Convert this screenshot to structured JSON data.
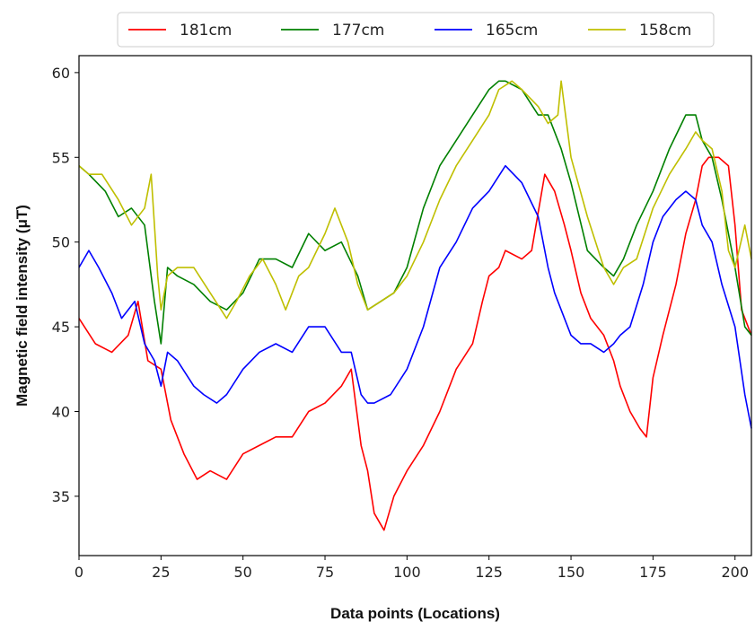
{
  "chart_data": {
    "type": "line",
    "title": "",
    "xlabel": "Data points (Locations)",
    "ylabel": "Magnetic field intensity (μT)",
    "xlim": [
      0,
      205
    ],
    "ylim": [
      31.5,
      61
    ],
    "xticks": [
      0,
      25,
      50,
      75,
      100,
      125,
      150,
      175,
      200
    ],
    "yticks": [
      35,
      40,
      45,
      50,
      55,
      60
    ],
    "grid": false,
    "legend_position": "top-center",
    "series": [
      {
        "name": "181cm",
        "color": "#ff0000",
        "x": [
          0,
          5,
          10,
          15,
          18,
          21,
          25,
          28,
          32,
          36,
          40,
          45,
          50,
          55,
          60,
          65,
          70,
          75,
          80,
          83,
          86,
          88,
          90,
          93,
          96,
          100,
          105,
          110,
          115,
          120,
          123,
          125,
          128,
          130,
          135,
          138,
          142,
          145,
          148,
          150,
          153,
          156,
          160,
          163,
          165,
          168,
          171,
          173,
          175,
          178,
          182,
          185,
          188,
          190,
          192,
          195,
          198,
          200,
          202,
          205
        ],
        "y": [
          45.5,
          44.0,
          43.5,
          44.5,
          46.5,
          43.0,
          42.5,
          39.5,
          37.5,
          36.0,
          36.5,
          36.0,
          37.5,
          38.0,
          38.5,
          38.5,
          40.0,
          40.5,
          41.5,
          42.5,
          38.0,
          36.5,
          34.0,
          33.0,
          35.0,
          36.5,
          38.0,
          40.0,
          42.5,
          44.0,
          46.5,
          48.0,
          48.5,
          49.5,
          49.0,
          49.5,
          54.0,
          53.0,
          51.0,
          49.5,
          47.0,
          45.5,
          44.5,
          43.0,
          41.5,
          40.0,
          39.0,
          38.5,
          42.0,
          44.5,
          47.5,
          50.5,
          52.5,
          54.5,
          55.0,
          55.0,
          54.5,
          51.0,
          46.0,
          44.5
        ]
      },
      {
        "name": "177cm",
        "color": "#008000",
        "x": [
          0,
          3,
          8,
          12,
          16,
          20,
          23,
          25,
          27,
          30,
          35,
          40,
          45,
          50,
          55,
          60,
          65,
          70,
          75,
          80,
          85,
          88,
          92,
          96,
          100,
          105,
          110,
          115,
          120,
          125,
          128,
          130,
          135,
          140,
          143,
          147,
          150,
          155,
          160,
          163,
          166,
          170,
          175,
          180,
          185,
          188,
          190,
          193,
          196,
          200,
          203,
          205
        ],
        "y": [
          54.5,
          54.0,
          53.0,
          51.5,
          52.0,
          51.0,
          46.5,
          44.0,
          48.5,
          48.0,
          47.5,
          46.5,
          46.0,
          47.0,
          49.0,
          49.0,
          48.5,
          50.5,
          49.5,
          50.0,
          48.0,
          46.0,
          46.5,
          47.0,
          48.5,
          52.0,
          54.5,
          56.0,
          57.5,
          59.0,
          59.5,
          59.5,
          59.0,
          57.5,
          57.5,
          55.5,
          53.5,
          49.5,
          48.5,
          48.0,
          49.0,
          51.0,
          53.0,
          55.5,
          57.5,
          57.5,
          56.0,
          55.0,
          52.5,
          48.5,
          45.0,
          44.5
        ]
      },
      {
        "name": "165cm",
        "color": "#0000ff",
        "x": [
          0,
          3,
          6,
          10,
          13,
          17,
          20,
          23,
          25,
          27,
          30,
          35,
          38,
          42,
          45,
          50,
          55,
          60,
          65,
          70,
          75,
          80,
          83,
          86,
          88,
          90,
          95,
          100,
          105,
          110,
          115,
          120,
          125,
          130,
          135,
          140,
          143,
          145,
          148,
          150,
          153,
          156,
          160,
          163,
          165,
          168,
          172,
          175,
          178,
          182,
          185,
          188,
          190,
          193,
          196,
          200,
          203,
          205
        ],
        "y": [
          48.5,
          49.5,
          48.5,
          47.0,
          45.5,
          46.5,
          44.0,
          43.0,
          41.5,
          43.5,
          43.0,
          41.5,
          41.0,
          40.5,
          41.0,
          42.5,
          43.5,
          44.0,
          43.5,
          45.0,
          45.0,
          43.5,
          43.5,
          41.0,
          40.5,
          40.5,
          41.0,
          42.5,
          45.0,
          48.5,
          50.0,
          52.0,
          53.0,
          54.5,
          53.5,
          51.5,
          48.5,
          47.0,
          45.5,
          44.5,
          44.0,
          44.0,
          43.5,
          44.0,
          44.5,
          45.0,
          47.5,
          50.0,
          51.5,
          52.5,
          53.0,
          52.5,
          51.0,
          50.0,
          47.5,
          45.0,
          41.0,
          39.0
        ]
      },
      {
        "name": "158cm",
        "color": "#bfbf00",
        "x": [
          0,
          3,
          7,
          12,
          16,
          20,
          22,
          24,
          25,
          27,
          30,
          35,
          40,
          45,
          48,
          52,
          56,
          60,
          63,
          67,
          70,
          75,
          78,
          82,
          85,
          88,
          92,
          96,
          100,
          105,
          110,
          115,
          120,
          125,
          128,
          132,
          135,
          140,
          143,
          146,
          147,
          150,
          155,
          160,
          163,
          166,
          170,
          175,
          180,
          185,
          188,
          190,
          193,
          196,
          198,
          200,
          203,
          205
        ],
        "y": [
          54.5,
          54.0,
          54.0,
          52.5,
          51.0,
          52.0,
          54.0,
          48.0,
          46.0,
          48.0,
          48.5,
          48.5,
          47.0,
          45.5,
          46.5,
          48.0,
          49.0,
          47.5,
          46.0,
          48.0,
          48.5,
          50.5,
          52.0,
          50.0,
          47.5,
          46.0,
          46.5,
          47.0,
          48.0,
          50.0,
          52.5,
          54.5,
          56.0,
          57.5,
          59.0,
          59.5,
          59.0,
          58.0,
          57.0,
          57.5,
          59.5,
          55.0,
          51.5,
          48.5,
          47.5,
          48.5,
          49.0,
          52.0,
          54.0,
          55.5,
          56.5,
          56.0,
          55.5,
          53.0,
          49.5,
          48.5,
          51.0,
          49.0
        ]
      }
    ]
  }
}
